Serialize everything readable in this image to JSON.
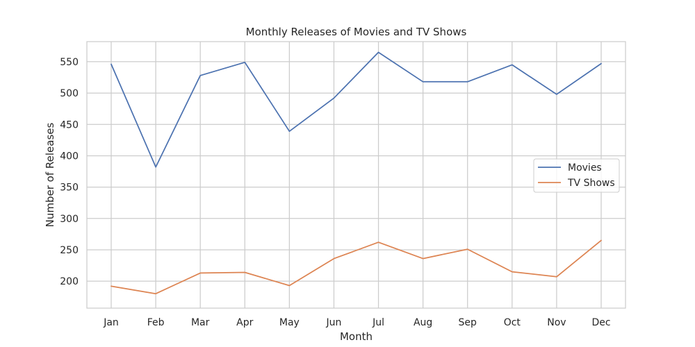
{
  "chart_data": {
    "type": "line",
    "title": "Monthly Releases of Movies and TV Shows",
    "xlabel": "Month",
    "ylabel": "Number of Releases",
    "categories": [
      "Jan",
      "Feb",
      "Mar",
      "Apr",
      "May",
      "Jun",
      "Jul",
      "Aug",
      "Sep",
      "Oct",
      "Nov",
      "Dec"
    ],
    "ylim": [
      157,
      582
    ],
    "yticks": [
      200,
      250,
      300,
      350,
      400,
      450,
      500,
      550
    ],
    "grid": true,
    "legend_position": "center-right",
    "series": [
      {
        "name": "Movies",
        "color": "#4c72b0",
        "values": [
          546,
          382,
          528,
          549,
          439,
          492,
          565,
          518,
          518,
          545,
          498,
          547
        ]
      },
      {
        "name": "TV Shows",
        "color": "#dd8452",
        "values": [
          192,
          180,
          213,
          214,
          193,
          236,
          262,
          236,
          251,
          215,
          207,
          265
        ]
      }
    ]
  }
}
